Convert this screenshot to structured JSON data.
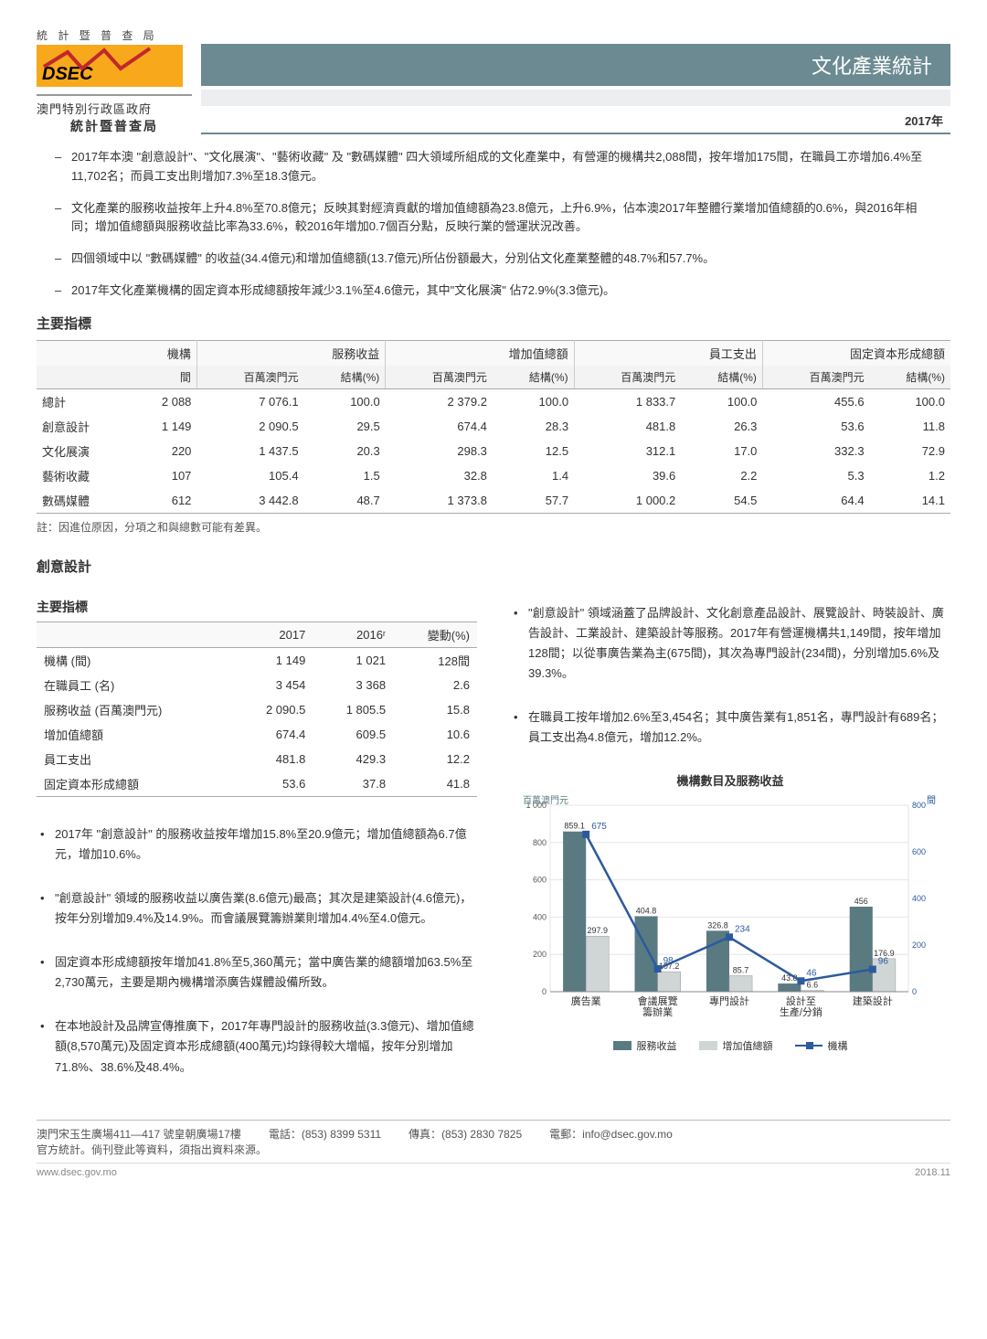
{
  "header": {
    "spaced_top": "統 計 暨 普 查 局",
    "logo_text": "DSEC",
    "gov1": "澳門特別行政區政府",
    "gov2": "統計暨普查局",
    "title": "文化產業統計",
    "year": "2017年"
  },
  "summary_bullets": [
    "2017年本澳 \"創意設計\"、\"文化展演\"、\"藝術收藏\" 及 \"數碼媒體\" 四大領域所組成的文化產業中，有營運的機構共2,088間，按年增加175間，在職員工亦增加6.4%至11,702名；而員工支出則增加7.3%至18.3億元。",
    "文化產業的服務收益按年上升4.8%至70.8億元；反映其對經濟貢獻的增加值總額為23.8億元，上升6.9%，佔本澳2017年整體行業增加值總額的0.6%，與2016年相同；增加值總額與服務收益比率為33.6%，較2016年增加0.7個百分點，反映行業的營運狀況改善。",
    "四個領域中以 \"數碼媒體\" 的收益(34.4億元)和增加值總額(13.7億元)所佔份額最大，分別佔文化產業整體的48.7%和57.7%。",
    "2017年文化產業機構的固定資本形成總額按年減少3.1%至4.6億元，其中\"文化展演\" 佔72.9%(3.3億元)。"
  ],
  "main_table": {
    "section_title": "主要指標",
    "head_groups": [
      "機構",
      "服務收益",
      "增加值總額",
      "員工支出",
      "固定資本形成總額"
    ],
    "sub_heads": [
      "間",
      "百萬澳門元",
      "結構(%)",
      "百萬澳門元",
      "結構(%)",
      "百萬澳門元",
      "結構(%)",
      "百萬澳門元",
      "結構(%)"
    ],
    "rows": [
      {
        "label": "總計",
        "v": [
          "2 088",
          "7 076.1",
          "100.0",
          "2 379.2",
          "100.0",
          "1 833.7",
          "100.0",
          "455.6",
          "100.0"
        ]
      },
      {
        "label": "創意設計",
        "v": [
          "1 149",
          "2 090.5",
          "29.5",
          "674.4",
          "28.3",
          "481.8",
          "26.3",
          "53.6",
          "11.8"
        ]
      },
      {
        "label": "文化展演",
        "v": [
          "220",
          "1 437.5",
          "20.3",
          "298.3",
          "12.5",
          "312.1",
          "17.0",
          "332.3",
          "72.9"
        ]
      },
      {
        "label": "藝術收藏",
        "v": [
          "107",
          "105.4",
          "1.5",
          "32.8",
          "1.4",
          "39.6",
          "2.2",
          "5.3",
          "1.2"
        ]
      },
      {
        "label": "數碼媒體",
        "v": [
          "612",
          "3 442.8",
          "48.7",
          "1 373.8",
          "57.7",
          "1 000.2",
          "54.5",
          "64.4",
          "14.1"
        ]
      }
    ],
    "note": "註：因進位原因，分項之和與總數可能有差異。"
  },
  "creative": {
    "section_title": "創意設計",
    "sub_title": "主要指標",
    "head": [
      "",
      "2017",
      "2016ʳ",
      "變動(%)"
    ],
    "rows": [
      {
        "label": "機構 (間)",
        "v": [
          "1 149",
          "1 021",
          "128間"
        ]
      },
      {
        "label": "在職員工 (名)",
        "v": [
          "3 454",
          "3 368",
          "2.6"
        ]
      },
      {
        "label": "服務收益 (百萬澳門元)",
        "v": [
          "2 090.5",
          "1 805.5",
          "15.8"
        ]
      },
      {
        "label": "增加值總額",
        "v": [
          "674.4",
          "609.5",
          "10.6"
        ]
      },
      {
        "label": "員工支出",
        "v": [
          "481.8",
          "429.3",
          "12.2"
        ]
      },
      {
        "label": "固定資本形成總額",
        "v": [
          "53.6",
          "37.8",
          "41.8"
        ]
      }
    ],
    "right_bullets": [
      "\"創意設計\" 領域涵蓋了品牌設計、文化創意產品設計、展覽設計、時裝設計、廣告設計、工業設計、建築設計等服務。2017年有營運機構共1,149間，按年增加128間；以從事廣告業為主(675間)，其次為專門設計(234間)，分別增加5.6%及39.3%。",
      "在職員工按年增加2.6%至3,454名；其中廣告業有1,851名，專門設計有689名；員工支出為4.8億元，增加12.2%。"
    ],
    "left_bullets": [
      "2017年 \"創意設計\" 的服務收益按年增加15.8%至20.9億元；增加值總額為6.7億元，增加10.6%。",
      "\"創意設計\" 領域的服務收益以廣告業(8.6億元)最高；其次是建築設計(4.6億元)，按年分別增加9.4%及14.9%。而會議展覽籌辦業則增加4.4%至4.0億元。",
      "固定資本形成總額按年增加41.8%至5,360萬元；當中廣告業的總額增加63.5%至2,730萬元，主要是期內機構增添廣告媒體設備所致。",
      "在本地設計及品牌宣傳推廣下，2017年專門設計的服務收益(3.3億元)、增加值總額(8,570萬元)及固定資本形成總額(400萬元)均錄得較大增幅，按年分別增加71.8%、38.6%及48.4%。"
    ]
  },
  "chart": {
    "title": "機構數目及服務收益",
    "y1_label": "百萬澳門元",
    "y2_label": "間",
    "y1_max": 1000,
    "y1_step": 200,
    "y2_max": 800,
    "y2_step": 200,
    "categories": [
      "廣告業",
      "會議展覽\n籌辦業",
      "專門設計",
      "設計至\n生產/分銷",
      "建築設計"
    ],
    "service_revenue": {
      "values": [
        859.1,
        404.8,
        326.8,
        43.8,
        456.0
      ],
      "color": "#5a7a82",
      "label": "服務收益"
    },
    "value_added": {
      "values": [
        297.9,
        107.2,
        85.7,
        6.6,
        176.9
      ],
      "color": "#d0d5d6",
      "label": "增加值總額"
    },
    "establishments": {
      "values": [
        675,
        98,
        234,
        46,
        96
      ],
      "color": "#2c5a9e",
      "label": "機構"
    },
    "bg": "#ffffff",
    "grid": "#e6e6e6",
    "bar_width": 0.32,
    "label_fontsize": 9
  },
  "footer": {
    "addr": "澳門宋玉生廣場411—417 號皇朝廣場17樓",
    "tel_lbl": "電話：",
    "tel": "(853) 8399 5311",
    "fax_lbl": "傳真：",
    "fax": "(853) 2830 7825",
    "mail_lbl": "電郵：",
    "mail": "info@dsec.gov.mo",
    "note": "官方統計。倘刊登此等資料，須指出資料來源。",
    "url": "www.dsec.gov.mo",
    "date": "2018.11"
  }
}
